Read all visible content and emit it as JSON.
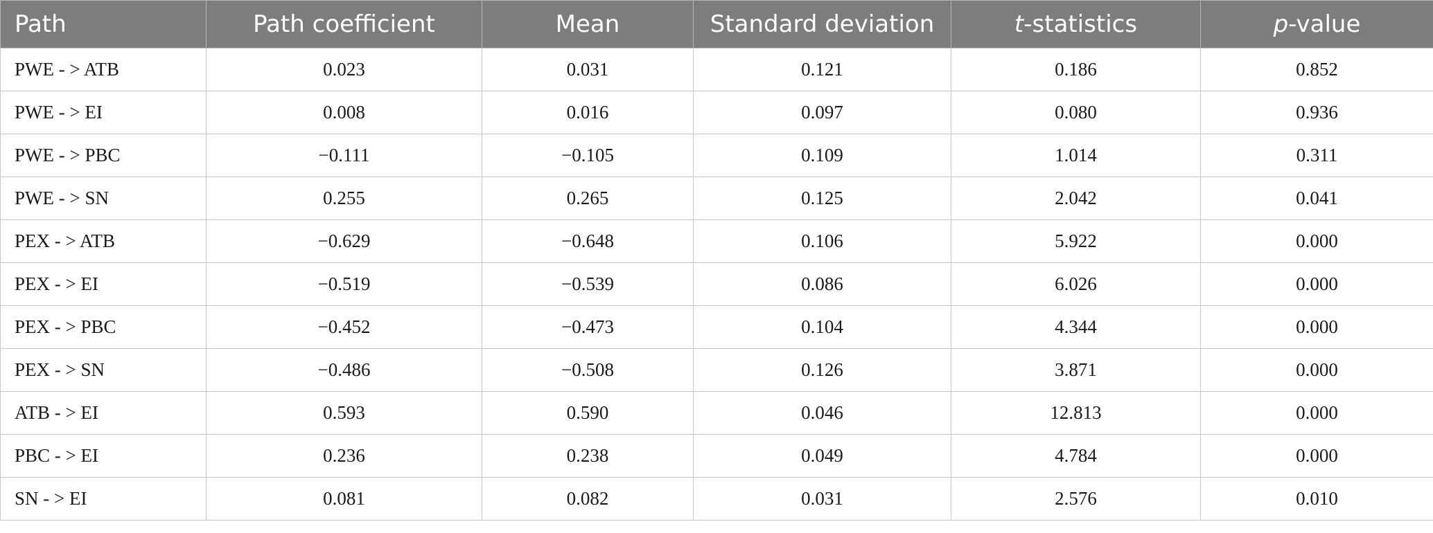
{
  "table": {
    "headers": [
      {
        "text": "Path"
      },
      {
        "text": "Path coefficient"
      },
      {
        "text": "Mean"
      },
      {
        "text": "Standard deviation"
      },
      {
        "prefix": "t",
        "text": "-statistics"
      },
      {
        "prefix": "p",
        "text": "-value"
      }
    ],
    "rows": [
      [
        "PWE - > ATB",
        "0.023",
        "0.031",
        "0.121",
        "0.186",
        "0.852"
      ],
      [
        "PWE - > EI",
        "0.008",
        "0.016",
        "0.097",
        "0.080",
        "0.936"
      ],
      [
        "PWE - > PBC",
        "−0.111",
        "−0.105",
        "0.109",
        "1.014",
        "0.311"
      ],
      [
        "PWE - > SN",
        "0.255",
        "0.265",
        "0.125",
        "2.042",
        "0.041"
      ],
      [
        "PEX - > ATB",
        "−0.629",
        "−0.648",
        "0.106",
        "5.922",
        "0.000"
      ],
      [
        "PEX - > EI",
        "−0.519",
        "−0.539",
        "0.086",
        "6.026",
        "0.000"
      ],
      [
        "PEX - > PBC",
        "−0.452",
        "−0.473",
        "0.104",
        "4.344",
        "0.000"
      ],
      [
        "PEX - > SN",
        "−0.486",
        "−0.508",
        "0.126",
        "3.871",
        "0.000"
      ],
      [
        "ATB - > EI",
        "0.593",
        "0.590",
        "0.046",
        "12.813",
        "0.000"
      ],
      [
        "PBC - > EI",
        "0.236",
        "0.238",
        "0.049",
        "4.784",
        "0.000"
      ],
      [
        "SN - > EI",
        "0.081",
        "0.082",
        "0.031",
        "2.576",
        "0.010"
      ]
    ]
  }
}
